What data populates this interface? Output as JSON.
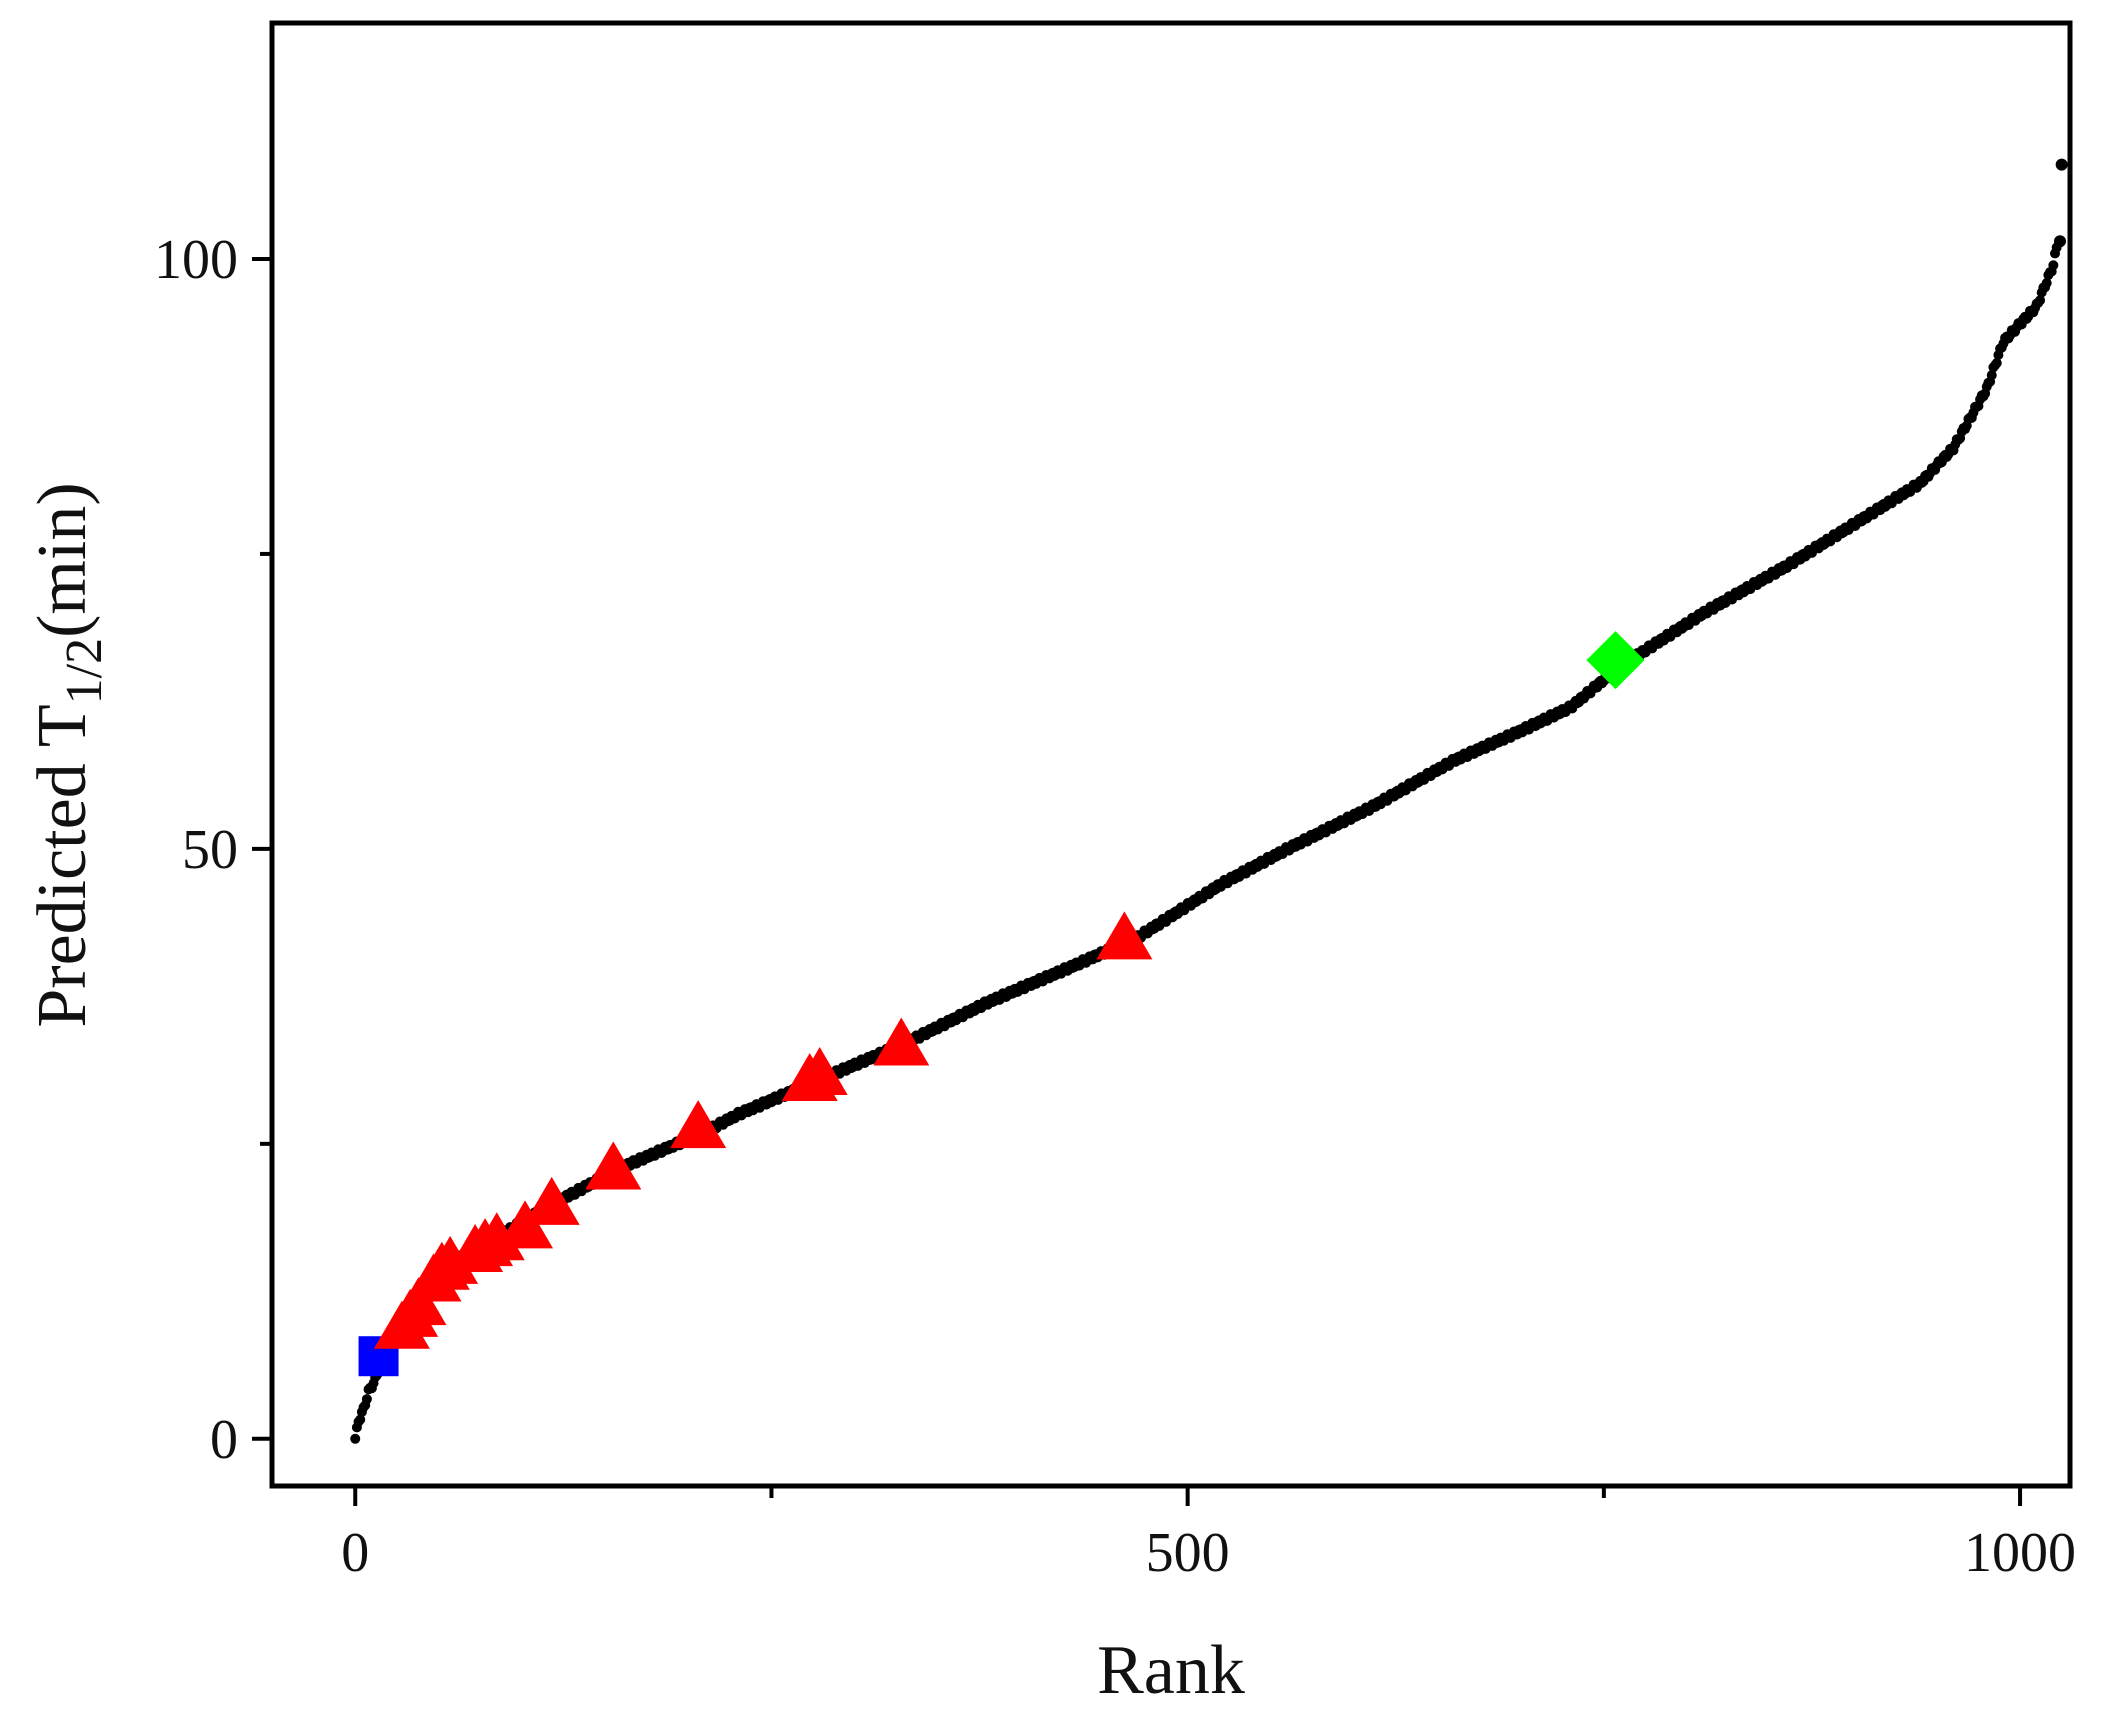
{
  "chart_data": {
    "type": "scatter",
    "xlabel": "Rank",
    "ylabel": {
      "main": "Predicted  T",
      "sub": "1/2",
      "suffix": "(min)"
    },
    "xlim": [
      -50,
      1030
    ],
    "ylim": [
      -4,
      120
    ],
    "x_ticks": [
      0,
      500,
      1000
    ],
    "x_minor_ticks": [
      250,
      750
    ],
    "y_ticks": [
      0,
      50,
      100
    ],
    "y_minor_ticks": [
      25,
      75
    ],
    "grid": false,
    "legend": "none",
    "curve_anchors": [
      [
        0,
        0
      ],
      [
        2,
        1.5
      ],
      [
        5,
        2.5
      ],
      [
        8,
        4
      ],
      [
        12,
        5
      ],
      [
        18,
        7.5
      ],
      [
        25,
        9
      ],
      [
        35,
        11
      ],
      [
        50,
        14
      ],
      [
        70,
        16
      ],
      [
        90,
        17.5
      ],
      [
        120,
        20
      ],
      [
        160,
        23
      ],
      [
        210,
        26
      ],
      [
        230,
        27.5
      ],
      [
        280,
        30.5
      ],
      [
        330,
        33.5
      ],
      [
        380,
        37
      ],
      [
        430,
        40
      ],
      [
        470,
        42.5
      ],
      [
        520,
        47
      ],
      [
        560,
        50
      ],
      [
        610,
        53.5
      ],
      [
        660,
        57.5
      ],
      [
        700,
        60
      ],
      [
        730,
        62
      ],
      [
        760,
        65.5
      ],
      [
        810,
        70
      ],
      [
        860,
        74
      ],
      [
        900,
        77.5
      ],
      [
        940,
        81
      ],
      [
        960,
        84
      ],
      [
        980,
        89
      ],
      [
        990,
        93
      ],
      [
        1010,
        96
      ],
      [
        1020,
        99.5
      ],
      [
        1022,
        101
      ],
      [
        1025,
        108
      ]
    ],
    "series": [
      {
        "marker": "circle",
        "color": "#000000",
        "points": "curve"
      },
      {
        "marker": "square",
        "color": "#0000FF",
        "points": [
          [
            14,
            7
          ]
        ]
      },
      {
        "marker": "triangle",
        "color": "#FF0000",
        "points": [
          [
            28,
            9.5
          ],
          [
            33,
            10.5
          ],
          [
            38,
            11.5
          ],
          [
            47,
            13.5
          ],
          [
            52,
            14.5
          ],
          [
            57,
            15
          ],
          [
            72,
            16
          ],
          [
            78,
            16.5
          ],
          [
            85,
            17
          ],
          [
            102,
            18
          ],
          [
            118,
            20
          ],
          [
            155,
            23
          ],
          [
            206,
            26.5
          ],
          [
            273,
            30.5
          ],
          [
            279,
            31
          ],
          [
            328,
            33.5
          ],
          [
            462,
            42.5
          ]
        ]
      },
      {
        "marker": "diamond",
        "color": "#00FF00",
        "points": [
          [
            757,
            66
          ]
        ]
      }
    ]
  }
}
